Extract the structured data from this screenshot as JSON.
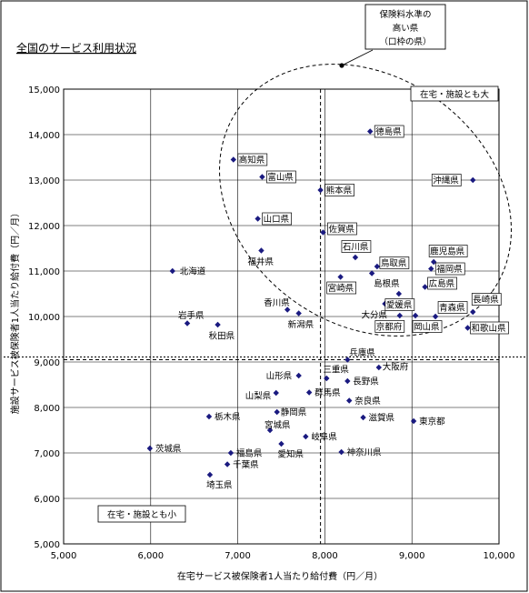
{
  "chart_data": {
    "type": "scatter",
    "title": "全国のサービス利用状況",
    "xlabel": "在宅サービス被保険者1人当たり給付費（円／月）",
    "ylabel": "施設サービス被保険者1人当たり給付費（円／月）",
    "xlim": [
      5000,
      10000
    ],
    "ylim": [
      5000,
      15000
    ],
    "xticks": [
      "5,000",
      "6,000",
      "7,000",
      "8,000",
      "9,000",
      "10,000"
    ],
    "yticks": [
      "5,000",
      "6,000",
      "7,000",
      "8,000",
      "9,000",
      "10,000",
      "11,000",
      "12,000",
      "13,000",
      "14,000",
      "15,000"
    ],
    "grid": true,
    "ref_lines": {
      "x_avg": 7950,
      "y_avg": 9070
    },
    "quadrant_labels": {
      "top_right": "在宅・施設とも大",
      "bottom_left": "在宅・施設とも小"
    },
    "callout": {
      "lines": [
        "保険料水準の",
        "高い県",
        "（口枠の県）"
      ],
      "point": [
        8220,
        14530
      ]
    },
    "points": [
      {
        "name": "徳島県",
        "x": 8520,
        "y": 14070,
        "boxed": true
      },
      {
        "name": "高知県",
        "x": 6950,
        "y": 13450,
        "boxed": true
      },
      {
        "name": "富山県",
        "x": 7280,
        "y": 13070,
        "boxed": true
      },
      {
        "name": "沖縄県",
        "x": 9700,
        "y": 13000,
        "boxed": true
      },
      {
        "name": "熊本県",
        "x": 7950,
        "y": 12780,
        "boxed": true
      },
      {
        "name": "山口県",
        "x": 7230,
        "y": 12150,
        "boxed": true
      },
      {
        "name": "佐賀県",
        "x": 7980,
        "y": 11850,
        "boxed": true
      },
      {
        "name": "石川県",
        "x": 8350,
        "y": 11300,
        "boxed": true
      },
      {
        "name": "福井県",
        "x": 7270,
        "y": 11450,
        "boxed": false
      },
      {
        "name": "北海道",
        "x": 6250,
        "y": 11000,
        "boxed": false
      },
      {
        "name": "鹿児島県",
        "x": 9250,
        "y": 11200,
        "boxed": true
      },
      {
        "name": "鳥取県",
        "x": 8600,
        "y": 11100,
        "boxed": true
      },
      {
        "name": "福岡県",
        "x": 9220,
        "y": 11050,
        "boxed": true
      },
      {
        "name": "島根県",
        "x": 8540,
        "y": 10950,
        "boxed": false
      },
      {
        "name": "宮崎県",
        "x": 8180,
        "y": 10870,
        "boxed": true
      },
      {
        "name": "広島県",
        "x": 9150,
        "y": 10650,
        "boxed": true
      },
      {
        "name": "香川県",
        "x": 7570,
        "y": 10150,
        "boxed": false
      },
      {
        "name": "愛媛県",
        "x": 8850,
        "y": 10500,
        "boxed": true
      },
      {
        "name": "大分県",
        "x": 8690,
        "y": 10280,
        "boxed": false
      },
      {
        "name": "青森県",
        "x": 9270,
        "y": 10000,
        "boxed": true
      },
      {
        "name": "長崎県",
        "x": 9700,
        "y": 10100,
        "boxed": true
      },
      {
        "name": "新潟県",
        "x": 7700,
        "y": 10070,
        "boxed": false
      },
      {
        "name": "岩手県",
        "x": 6420,
        "y": 9850,
        "boxed": false
      },
      {
        "name": "秋田県",
        "x": 6770,
        "y": 9820,
        "boxed": false
      },
      {
        "name": "京都府",
        "x": 8860,
        "y": 10020,
        "boxed": true
      },
      {
        "name": "岡山県",
        "x": 9040,
        "y": 10020,
        "boxed": true
      },
      {
        "name": "和歌山県",
        "x": 9640,
        "y": 9750,
        "boxed": true
      },
      {
        "name": "兵庫県",
        "x": 8260,
        "y": 9050,
        "boxed": false
      },
      {
        "name": "大阪府",
        "x": 8620,
        "y": 8880,
        "boxed": false
      },
      {
        "name": "山形県",
        "x": 7700,
        "y": 8700,
        "boxed": false
      },
      {
        "name": "三重県",
        "x": 8020,
        "y": 8640,
        "boxed": false
      },
      {
        "name": "長野県",
        "x": 8260,
        "y": 8580,
        "boxed": false
      },
      {
        "name": "山梨県",
        "x": 7440,
        "y": 8320,
        "boxed": false
      },
      {
        "name": "群馬県",
        "x": 7820,
        "y": 8330,
        "boxed": false
      },
      {
        "name": "奈良県",
        "x": 8280,
        "y": 8150,
        "boxed": false
      },
      {
        "name": "静岡県",
        "x": 7450,
        "y": 7900,
        "boxed": false
      },
      {
        "name": "栃木県",
        "x": 6670,
        "y": 7800,
        "boxed": false
      },
      {
        "name": "滋賀県",
        "x": 8440,
        "y": 7780,
        "boxed": false
      },
      {
        "name": "東京都",
        "x": 9020,
        "y": 7700,
        "boxed": false
      },
      {
        "name": "宮城県",
        "x": 7370,
        "y": 7500,
        "boxed": false
      },
      {
        "name": "岐阜県",
        "x": 7780,
        "y": 7360,
        "boxed": false
      },
      {
        "name": "愛知県",
        "x": 7500,
        "y": 7200,
        "boxed": false
      },
      {
        "name": "茨城県",
        "x": 5990,
        "y": 7100,
        "boxed": false
      },
      {
        "name": "福島県",
        "x": 6920,
        "y": 7000,
        "boxed": false
      },
      {
        "name": "神奈川県",
        "x": 8190,
        "y": 7020,
        "boxed": false
      },
      {
        "name": "千葉県",
        "x": 6880,
        "y": 6750,
        "boxed": false
      },
      {
        "name": "埼玉県",
        "x": 6680,
        "y": 6520,
        "boxed": false
      }
    ]
  }
}
